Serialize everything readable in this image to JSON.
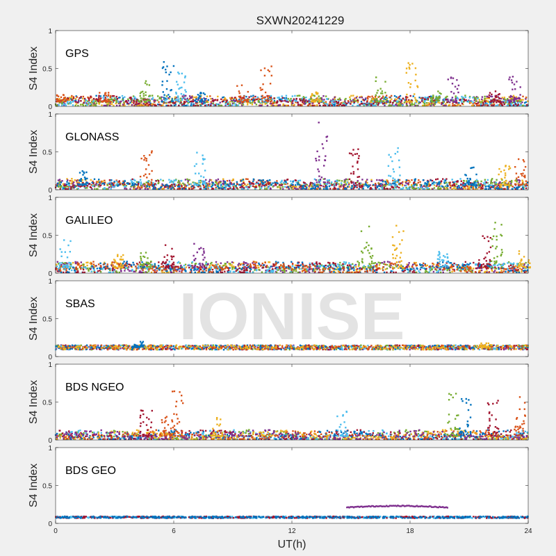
{
  "chart_data": {
    "type": "scatter",
    "title": "SXWN20241229",
    "xlabel": "UT(h)",
    "ylabel": "S4 Index",
    "xlim": [
      0,
      24
    ],
    "xticks": [
      0,
      6,
      12,
      18,
      24
    ],
    "ylim": [
      0,
      1
    ],
    "yticks": [
      0,
      0.5,
      1
    ],
    "watermark": "IONISE",
    "colors": [
      "#0072BD",
      "#D95319",
      "#EDB120",
      "#7E2F8E",
      "#77AC30",
      "#4DBEEE",
      "#A2142F"
    ],
    "panels": [
      {
        "label": "GPS",
        "baseline": 0.06,
        "noise": 0.045,
        "spikes": [
          [
            0.3,
            0.16,
            1
          ],
          [
            2.5,
            0.18,
            1
          ],
          [
            4.5,
            0.35,
            4
          ],
          [
            5.7,
            0.63,
            0
          ],
          [
            6.4,
            0.45,
            5
          ],
          [
            7.3,
            0.2,
            0
          ],
          [
            9.5,
            0.3,
            1
          ],
          [
            10.7,
            0.55,
            1
          ],
          [
            13.2,
            0.25,
            2
          ],
          [
            16.5,
            0.4,
            4
          ],
          [
            18.1,
            0.58,
            2
          ],
          [
            19.3,
            0.2,
            4
          ],
          [
            20.2,
            0.4,
            3
          ],
          [
            22.3,
            0.2,
            6
          ],
          [
            23.3,
            0.42,
            3
          ]
        ]
      },
      {
        "label": "GLONASS",
        "baseline": 0.06,
        "noise": 0.045,
        "spikes": [
          [
            1.4,
            0.25,
            0
          ],
          [
            4.6,
            0.7,
            1
          ],
          [
            7.3,
            0.5,
            5
          ],
          [
            13.5,
            0.92,
            3
          ],
          [
            15.2,
            0.55,
            6
          ],
          [
            17.2,
            0.55,
            5
          ],
          [
            21.1,
            0.3,
            0
          ],
          [
            22.8,
            0.32,
            2
          ],
          [
            23.6,
            0.65,
            1
          ]
        ]
      },
      {
        "label": "GALILEO",
        "baseline": 0.07,
        "noise": 0.045,
        "spikes": [
          [
            0.5,
            0.48,
            5
          ],
          [
            3.2,
            0.28,
            2
          ],
          [
            4.6,
            0.28,
            4
          ],
          [
            5.8,
            0.38,
            6
          ],
          [
            7.3,
            0.4,
            3
          ],
          [
            15.8,
            0.62,
            4
          ],
          [
            17.4,
            0.65,
            2
          ],
          [
            19.7,
            0.35,
            5
          ],
          [
            21.8,
            0.5,
            6
          ],
          [
            22.4,
            0.78,
            4
          ],
          [
            23.8,
            0.3,
            2
          ]
        ]
      },
      {
        "label": "SBAS",
        "baseline": 0.12,
        "noise": 0.03,
        "spikes": [
          [
            4.2,
            0.2,
            0
          ],
          [
            21.8,
            0.18,
            2
          ]
        ]
      },
      {
        "label": "BDS NGEO",
        "baseline": 0.05,
        "noise": 0.045,
        "spikes": [
          [
            4.6,
            0.4,
            6
          ],
          [
            5.6,
            0.35,
            1
          ],
          [
            6.2,
            0.67,
            1
          ],
          [
            8.2,
            0.3,
            2
          ],
          [
            14.6,
            0.45,
            5
          ],
          [
            20.2,
            0.62,
            4
          ],
          [
            20.8,
            0.55,
            0
          ],
          [
            22.2,
            0.6,
            6
          ],
          [
            23.6,
            0.6,
            1
          ]
        ]
      },
      {
        "label": "BDS GEO",
        "baseline": 0.08,
        "noise": 0.012,
        "spikes": [],
        "arc": {
          "x0": 14.8,
          "x1": 19.9,
          "y": 0.21,
          "color": 3
        }
      }
    ]
  }
}
